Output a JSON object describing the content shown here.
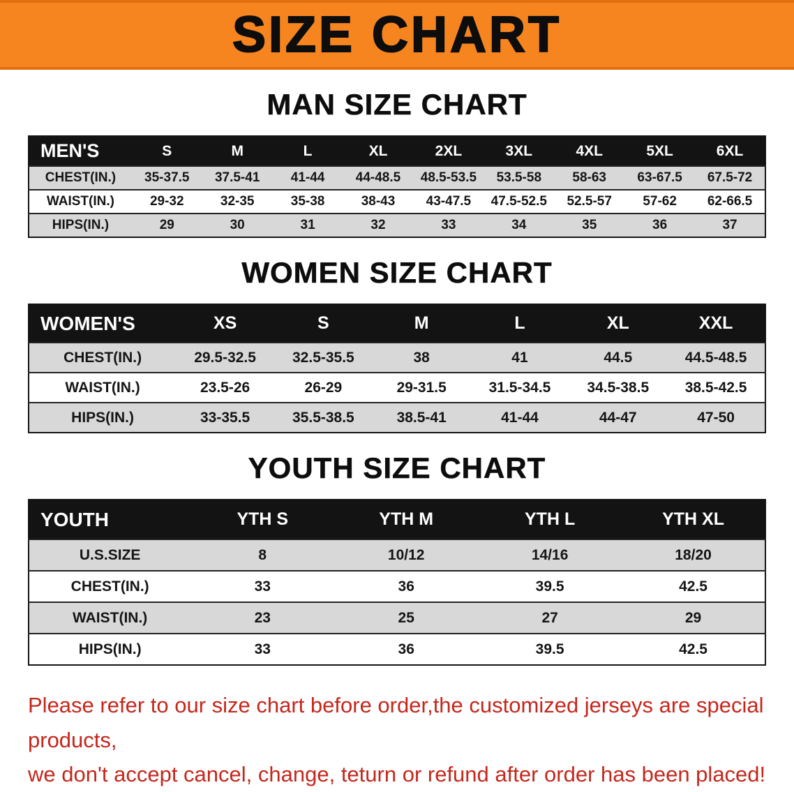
{
  "banner": {
    "title": "SIZE CHART"
  },
  "colors": {
    "banner_bg": "#f6851f",
    "table_header_bg": "#131313",
    "row_alt_bg": "#d8d8d8",
    "footer_text": "#c5271c"
  },
  "sections": [
    {
      "heading": "MAN SIZE CHART",
      "table": {
        "columns": [
          "MEN'S",
          "S",
          "M",
          "L",
          "XL",
          "2XL",
          "3XL",
          "4XL",
          "5XL",
          "6XL"
        ],
        "rows": [
          [
            "CHEST(IN.)",
            "35-37.5",
            "37.5-41",
            "41-44",
            "44-48.5",
            "48.5-53.5",
            "53.5-58",
            "58-63",
            "63-67.5",
            "67.5-72"
          ],
          [
            "WAIST(IN.)",
            "29-32",
            "32-35",
            "35-38",
            "38-43",
            "43-47.5",
            "47.5-52.5",
            "52.5-57",
            "57-62",
            "62-66.5"
          ],
          [
            "HIPS(IN.)",
            "29",
            "30",
            "31",
            "32",
            "33",
            "34",
            "35",
            "36",
            "37"
          ]
        ]
      }
    },
    {
      "heading": "WOMEN SIZE CHART",
      "table": {
        "columns": [
          "WOMEN'S",
          "XS",
          "S",
          "M",
          "L",
          "XL",
          "XXL"
        ],
        "rows": [
          [
            "CHEST(IN.)",
            "29.5-32.5",
            "32.5-35.5",
            "38",
            "41",
            "44.5",
            "44.5-48.5"
          ],
          [
            "WAIST(IN.)",
            "23.5-26",
            "26-29",
            "29-31.5",
            "31.5-34.5",
            "34.5-38.5",
            "38.5-42.5"
          ],
          [
            "HIPS(IN.)",
            "33-35.5",
            "35.5-38.5",
            "38.5-41",
            "41-44",
            "44-47",
            "47-50"
          ]
        ]
      }
    },
    {
      "heading": "YOUTH SIZE CHART",
      "table": {
        "columns": [
          "YOUTH",
          "YTH S",
          "YTH M",
          "YTH L",
          "YTH XL"
        ],
        "rows": [
          [
            "U.S.SIZE",
            "8",
            "10/12",
            "14/16",
            "18/20"
          ],
          [
            "CHEST(IN.)",
            "33",
            "36",
            "39.5",
            "42.5"
          ],
          [
            "WAIST(IN.)",
            "23",
            "25",
            "27",
            "29"
          ],
          [
            "HIPS(IN.)",
            "33",
            "36",
            "39.5",
            "42.5"
          ]
        ]
      }
    }
  ],
  "footer": {
    "line1": "Please refer to our size chart before order,the customized jerseys are special products,",
    "line2": "we don't accept cancel, change, teturn or refund after order has been placed!"
  }
}
